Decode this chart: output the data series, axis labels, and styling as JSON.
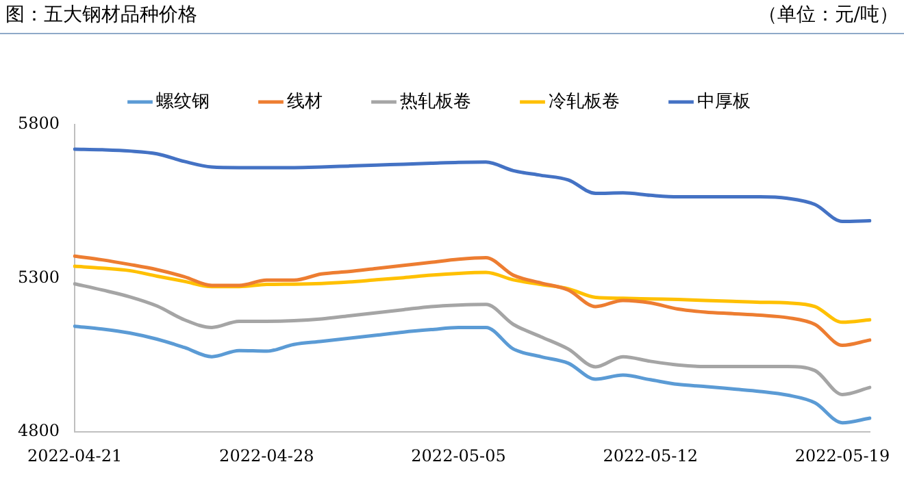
{
  "chart_data": {
    "type": "line",
    "title": "图：五大钢材品种价格",
    "subtitle": "（单位：元/吨）",
    "categories": [
      "2022-04-21",
      null,
      null,
      null,
      null,
      null,
      null,
      "2022-04-28",
      null,
      null,
      null,
      null,
      null,
      null,
      "2022-05-05",
      null,
      null,
      null,
      null,
      null,
      null,
      "2022-05-12",
      null,
      null,
      null,
      null,
      null,
      null,
      "2022-05-19",
      null
    ],
    "series": [
      {
        "name": "螺纹钢",
        "color": "#5b9bd5",
        "values": [
          5144,
          5135,
          5122,
          5102,
          5075,
          5045,
          5065,
          5063,
          5085,
          5095,
          5105,
          5115,
          5125,
          5133,
          5140,
          5140,
          5070,
          5045,
          5024,
          4972,
          4985,
          4970,
          4955,
          4948,
          4940,
          4932,
          4920,
          4895,
          4830,
          4845
        ]
      },
      {
        "name": "线材",
        "color": "#ed7d31",
        "values": [
          5372,
          5360,
          5345,
          5328,
          5305,
          5277,
          5277,
          5294,
          5294,
          5314,
          5322,
          5332,
          5342,
          5352,
          5362,
          5367,
          5310,
          5285,
          5262,
          5208,
          5228,
          5220,
          5200,
          5190,
          5185,
          5180,
          5172,
          5150,
          5082,
          5099
        ]
      },
      {
        "name": "热轧板卷",
        "color": "#a5a5a5",
        "values": [
          5282,
          5262,
          5240,
          5210,
          5165,
          5140,
          5160,
          5160,
          5162,
          5168,
          5178,
          5188,
          5198,
          5208,
          5213,
          5215,
          5150,
          5110,
          5070,
          5012,
          5045,
          5030,
          5018,
          5013,
          5013,
          5013,
          5013,
          5000,
          4922,
          4945
        ]
      },
      {
        "name": "冷轧板卷",
        "color": "#ffc000",
        "values": [
          5339,
          5333,
          5325,
          5307,
          5290,
          5273,
          5273,
          5280,
          5281,
          5283,
          5288,
          5295,
          5302,
          5310,
          5316,
          5319,
          5295,
          5280,
          5266,
          5238,
          5235,
          5233,
          5231,
          5228,
          5225,
          5222,
          5220,
          5208,
          5157,
          5165
        ]
      },
      {
        "name": "中厚板",
        "color": "#4472c4",
        "values": [
          5720,
          5718,
          5714,
          5705,
          5680,
          5662,
          5660,
          5660,
          5660,
          5662,
          5665,
          5668,
          5671,
          5674,
          5677,
          5678,
          5650,
          5635,
          5620,
          5576,
          5578,
          5570,
          5565,
          5565,
          5565,
          5565,
          5560,
          5540,
          5485,
          5487
        ]
      }
    ],
    "ylim": [
      4800,
      5800
    ],
    "yticks": [
      4800,
      5300,
      5800
    ],
    "grid": false,
    "legend": "top",
    "marker": "none",
    "line_style": "solid"
  }
}
